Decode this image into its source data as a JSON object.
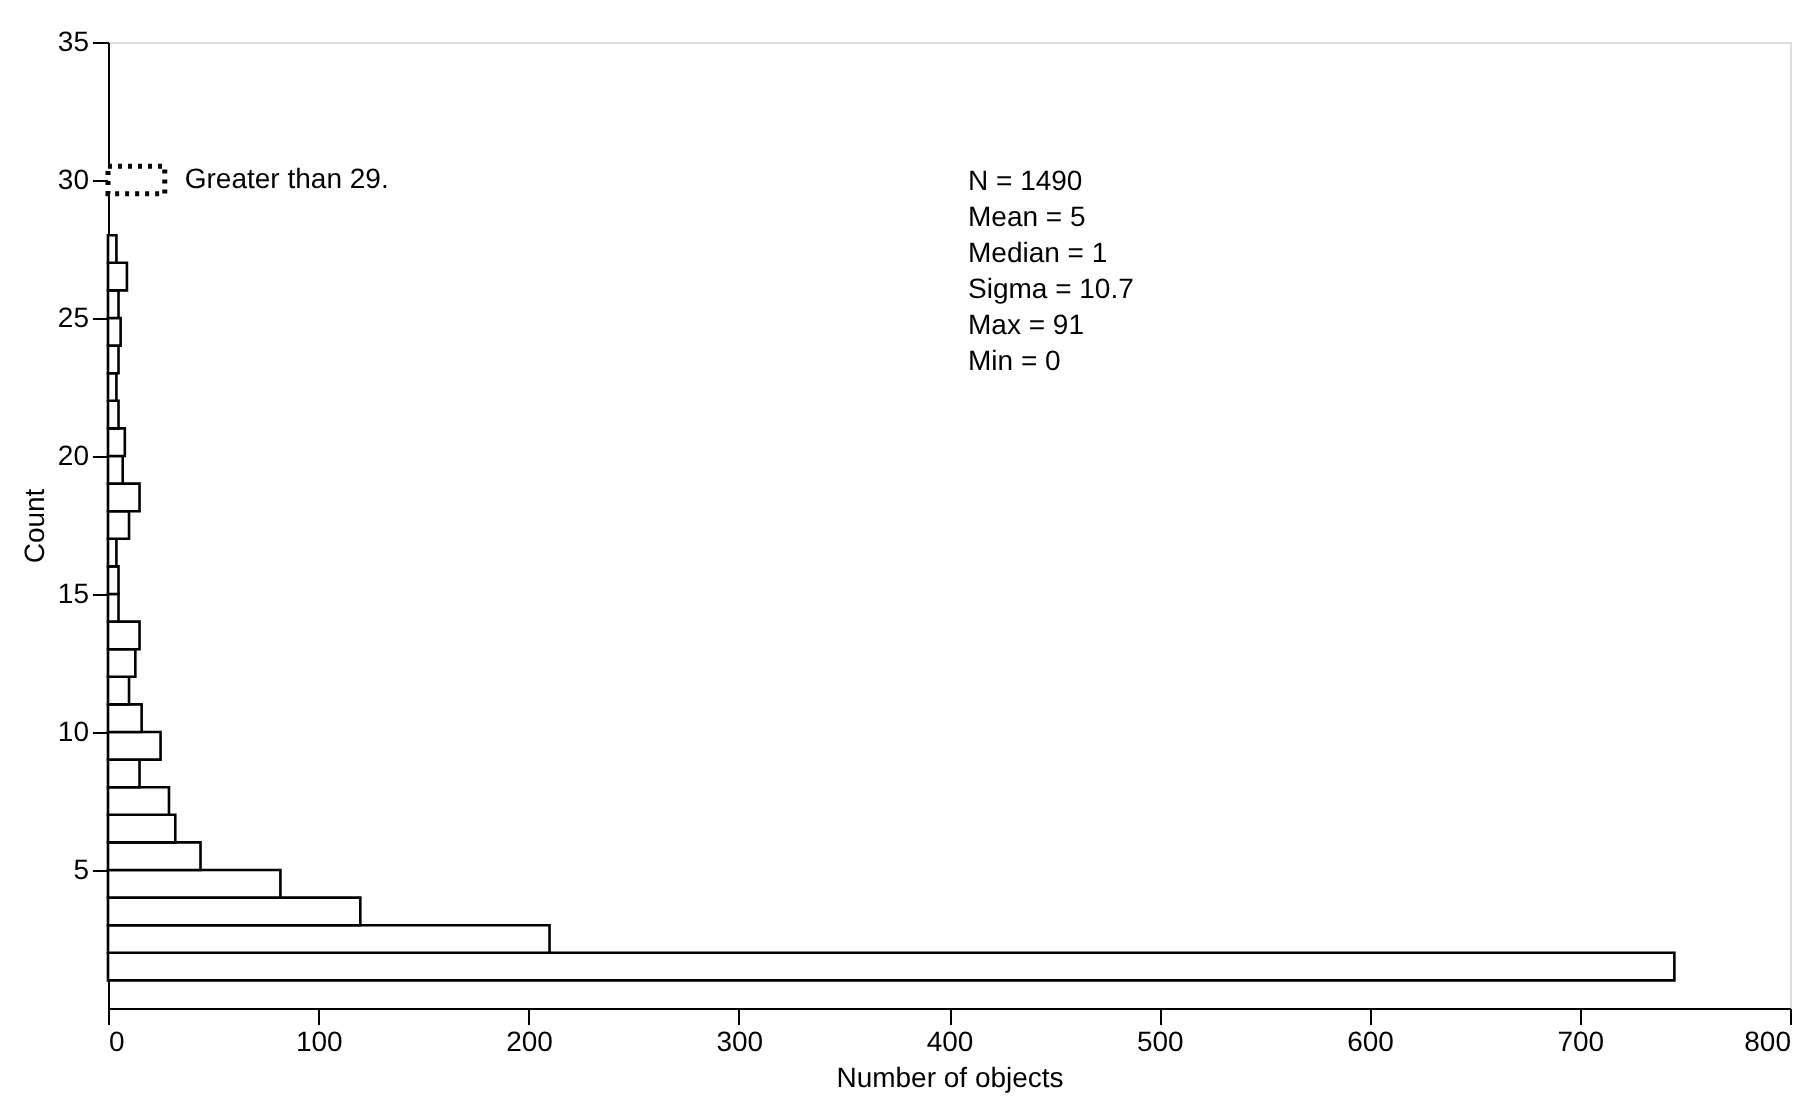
{
  "chart_data": {
    "type": "bar",
    "orientation": "horizontal",
    "xlabel": "Number of objects",
    "ylabel": "Count",
    "series": [
      {
        "color": "#ffffff",
        "x": [
          1.5,
          2.5,
          3.5,
          4.5,
          5.5,
          6.5,
          7.5,
          8.5,
          9.5,
          10.5,
          11.5,
          12.5,
          13.5,
          14.5,
          15.5,
          16.5,
          17.5,
          18.5,
          19.5,
          20.5,
          21.5,
          22.5,
          23.5,
          24.5,
          25.5,
          26.5,
          27.5
        ],
        "values": [
          745,
          210,
          120,
          82,
          44,
          32,
          29,
          15,
          25,
          16,
          10,
          13,
          15,
          5,
          5,
          4,
          10,
          15,
          7,
          8,
          5,
          4,
          5,
          6,
          5,
          9,
          4
        ]
      },
      {
        "name": "Greater than 29.",
        "color": "#ffffff",
        "line_style": "dotted",
        "x": [
          30
        ],
        "values": [
          27
        ]
      }
    ],
    "xlim": [
      0,
      800
    ],
    "xticks": [
      0,
      100,
      200,
      300,
      400,
      500,
      600,
      700,
      800
    ],
    "ylim": [
      0,
      35
    ],
    "yticks": [
      5,
      10,
      15,
      20,
      25,
      30,
      35
    ],
    "grid": false,
    "legend": false,
    "annotations": [
      "N        = 1490",
      "Mean    =     5",
      "Median =     1",
      "Sigma   =  10.7",
      "Max     =    91",
      "Min      =      0"
    ]
  }
}
